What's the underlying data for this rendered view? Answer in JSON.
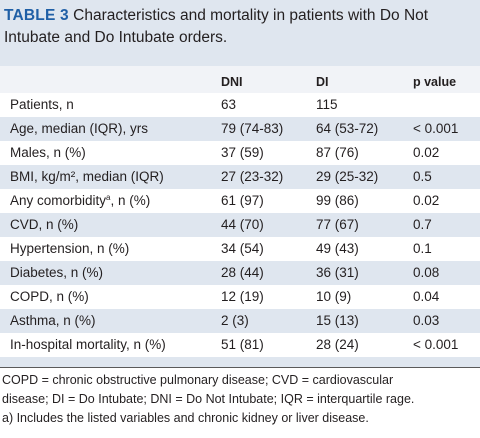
{
  "caption": {
    "label": "TABLE 3",
    "text": "Characteristics and mortality in patients with Do Not Intubate and Do Intubate orders."
  },
  "columns": [
    "",
    "DNI",
    "DI",
    "p value"
  ],
  "rows": [
    {
      "label": "Patients, n",
      "sup": "",
      "label_after": "",
      "dni": "63",
      "di": "115",
      "p": ""
    },
    {
      "label": "Age, median (IQR), yrs",
      "sup": "",
      "label_after": "",
      "dni": "79 (74-83)",
      "di": "64 (53-72)",
      "p": "< 0.001"
    },
    {
      "label": "Males, n (%)",
      "sup": "",
      "label_after": "",
      "dni": "37 (59)",
      "di": "87 (76)",
      "p": "0.02"
    },
    {
      "label": "BMI, kg/m², median (IQR)",
      "sup": "",
      "label_after": "",
      "dni": "27 (23-32)",
      "di": "29 (25-32)",
      "p": "0.5"
    },
    {
      "label": "Any comorbidity",
      "sup": "a",
      "label_after": ", n (%)",
      "dni": "61 (97)",
      "di": "99 (86)",
      "p": "0.02"
    },
    {
      "label": "CVD, n (%)",
      "sup": "",
      "label_after": "",
      "dni": "44 (70)",
      "di": "77 (67)",
      "p": "0.7"
    },
    {
      "label": "Hypertension, n (%)",
      "sup": "",
      "label_after": "",
      "dni": "34 (54)",
      "di": "49 (43)",
      "p": "0.1"
    },
    {
      "label": "Diabetes, n (%)",
      "sup": "",
      "label_after": "",
      "dni": "28 (44)",
      "di": "36 (31)",
      "p": "0.08"
    },
    {
      "label": "COPD, n (%)",
      "sup": "",
      "label_after": "",
      "dni": "12 (19)",
      "di": "10 (9)",
      "p": "0.04"
    },
    {
      "label": "Asthma, n (%)",
      "sup": "",
      "label_after": "",
      "dni": "2 (3)",
      "di": "15 (13)",
      "p": "0.03"
    },
    {
      "label": "In-hospital mortality, n (%)",
      "sup": "",
      "label_after": "",
      "dni": "51 (81)",
      "di": "28 (24)",
      "p": "< 0.001"
    }
  ],
  "footnotes": {
    "line1": "COPD = chronic obstructive pulmonary disease; CVD = cardiovascular",
    "line2": "disease; DI = Do Intubate; DNI = Do Not Intubate; IQR = interquartile rage.",
    "line3": "a) Includes the listed variables and chronic kidney or liver disease."
  },
  "colors": {
    "caption_bg": "#dfe6ef",
    "label_accent": "#1f5fa6",
    "header_bg": "#f1f3f7",
    "stripe_bg": "#dfe6ef",
    "row_bg": "#ffffff"
  }
}
